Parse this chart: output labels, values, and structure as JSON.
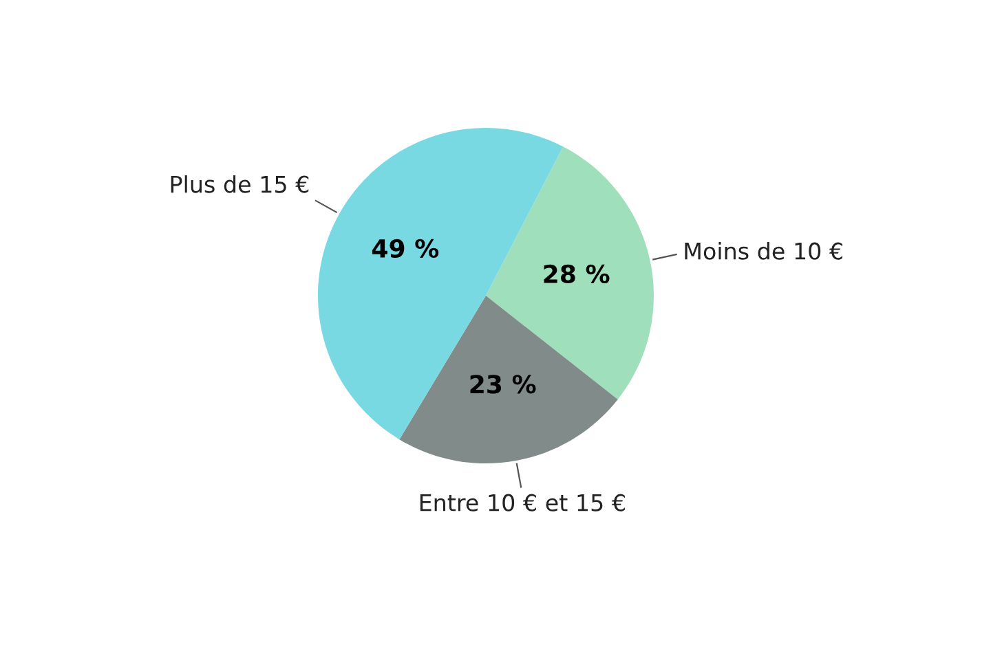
{
  "chart_data": {
    "type": "pie",
    "categories": [
      "Moins de 10 €",
      "Entre 10 € et 15 €",
      "Plus de 15 €"
    ],
    "values": [
      28,
      23,
      49
    ],
    "colors": [
      "#a0dfbb",
      "#818b89",
      "#79d9e3"
    ],
    "value_labels": [
      "28 %",
      "23 %",
      "49 %"
    ],
    "legend": false
  }
}
